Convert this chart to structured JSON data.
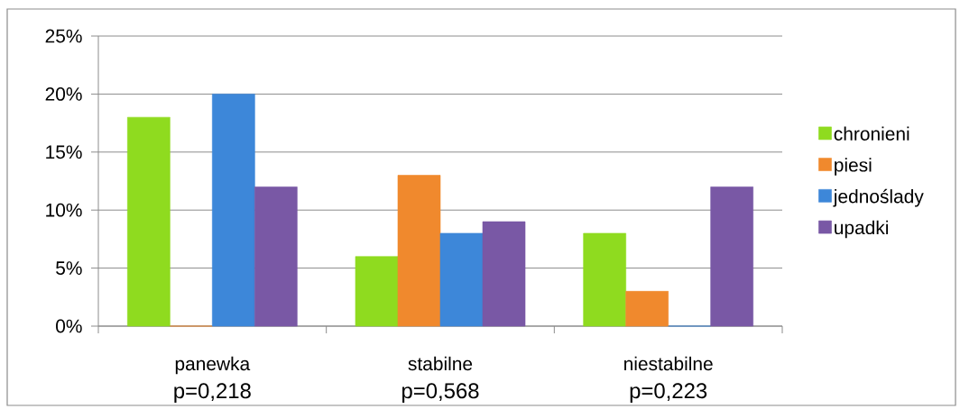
{
  "chart_data": {
    "type": "bar",
    "categories": [
      "panewka",
      "stabilne",
      "niestabilne"
    ],
    "series": [
      {
        "name": "chronieni",
        "color": "#8fdb1f",
        "values": [
          18,
          6,
          8
        ]
      },
      {
        "name": "piesi",
        "color": "#f0892d",
        "values": [
          0,
          13,
          3
        ]
      },
      {
        "name": "jednoślady",
        "color": "#3d87d9",
        "values": [
          20,
          8,
          0
        ]
      },
      {
        "name": "upadki",
        "color": "#7958a5",
        "values": [
          12,
          9,
          12
        ]
      }
    ],
    "ylim": [
      0,
      25
    ],
    "yticks": [
      {
        "value": 0,
        "label": "0%"
      },
      {
        "value": 5,
        "label": "5%"
      },
      {
        "value": 10,
        "label": "10%"
      },
      {
        "value": 15,
        "label": "15%"
      },
      {
        "value": 20,
        "label": "20%"
      },
      {
        "value": 25,
        "label": "25%"
      }
    ],
    "grid": "y",
    "legend": "right",
    "annotations": [
      "p=0,218",
      "p=0,568",
      "p=0,223"
    ]
  }
}
